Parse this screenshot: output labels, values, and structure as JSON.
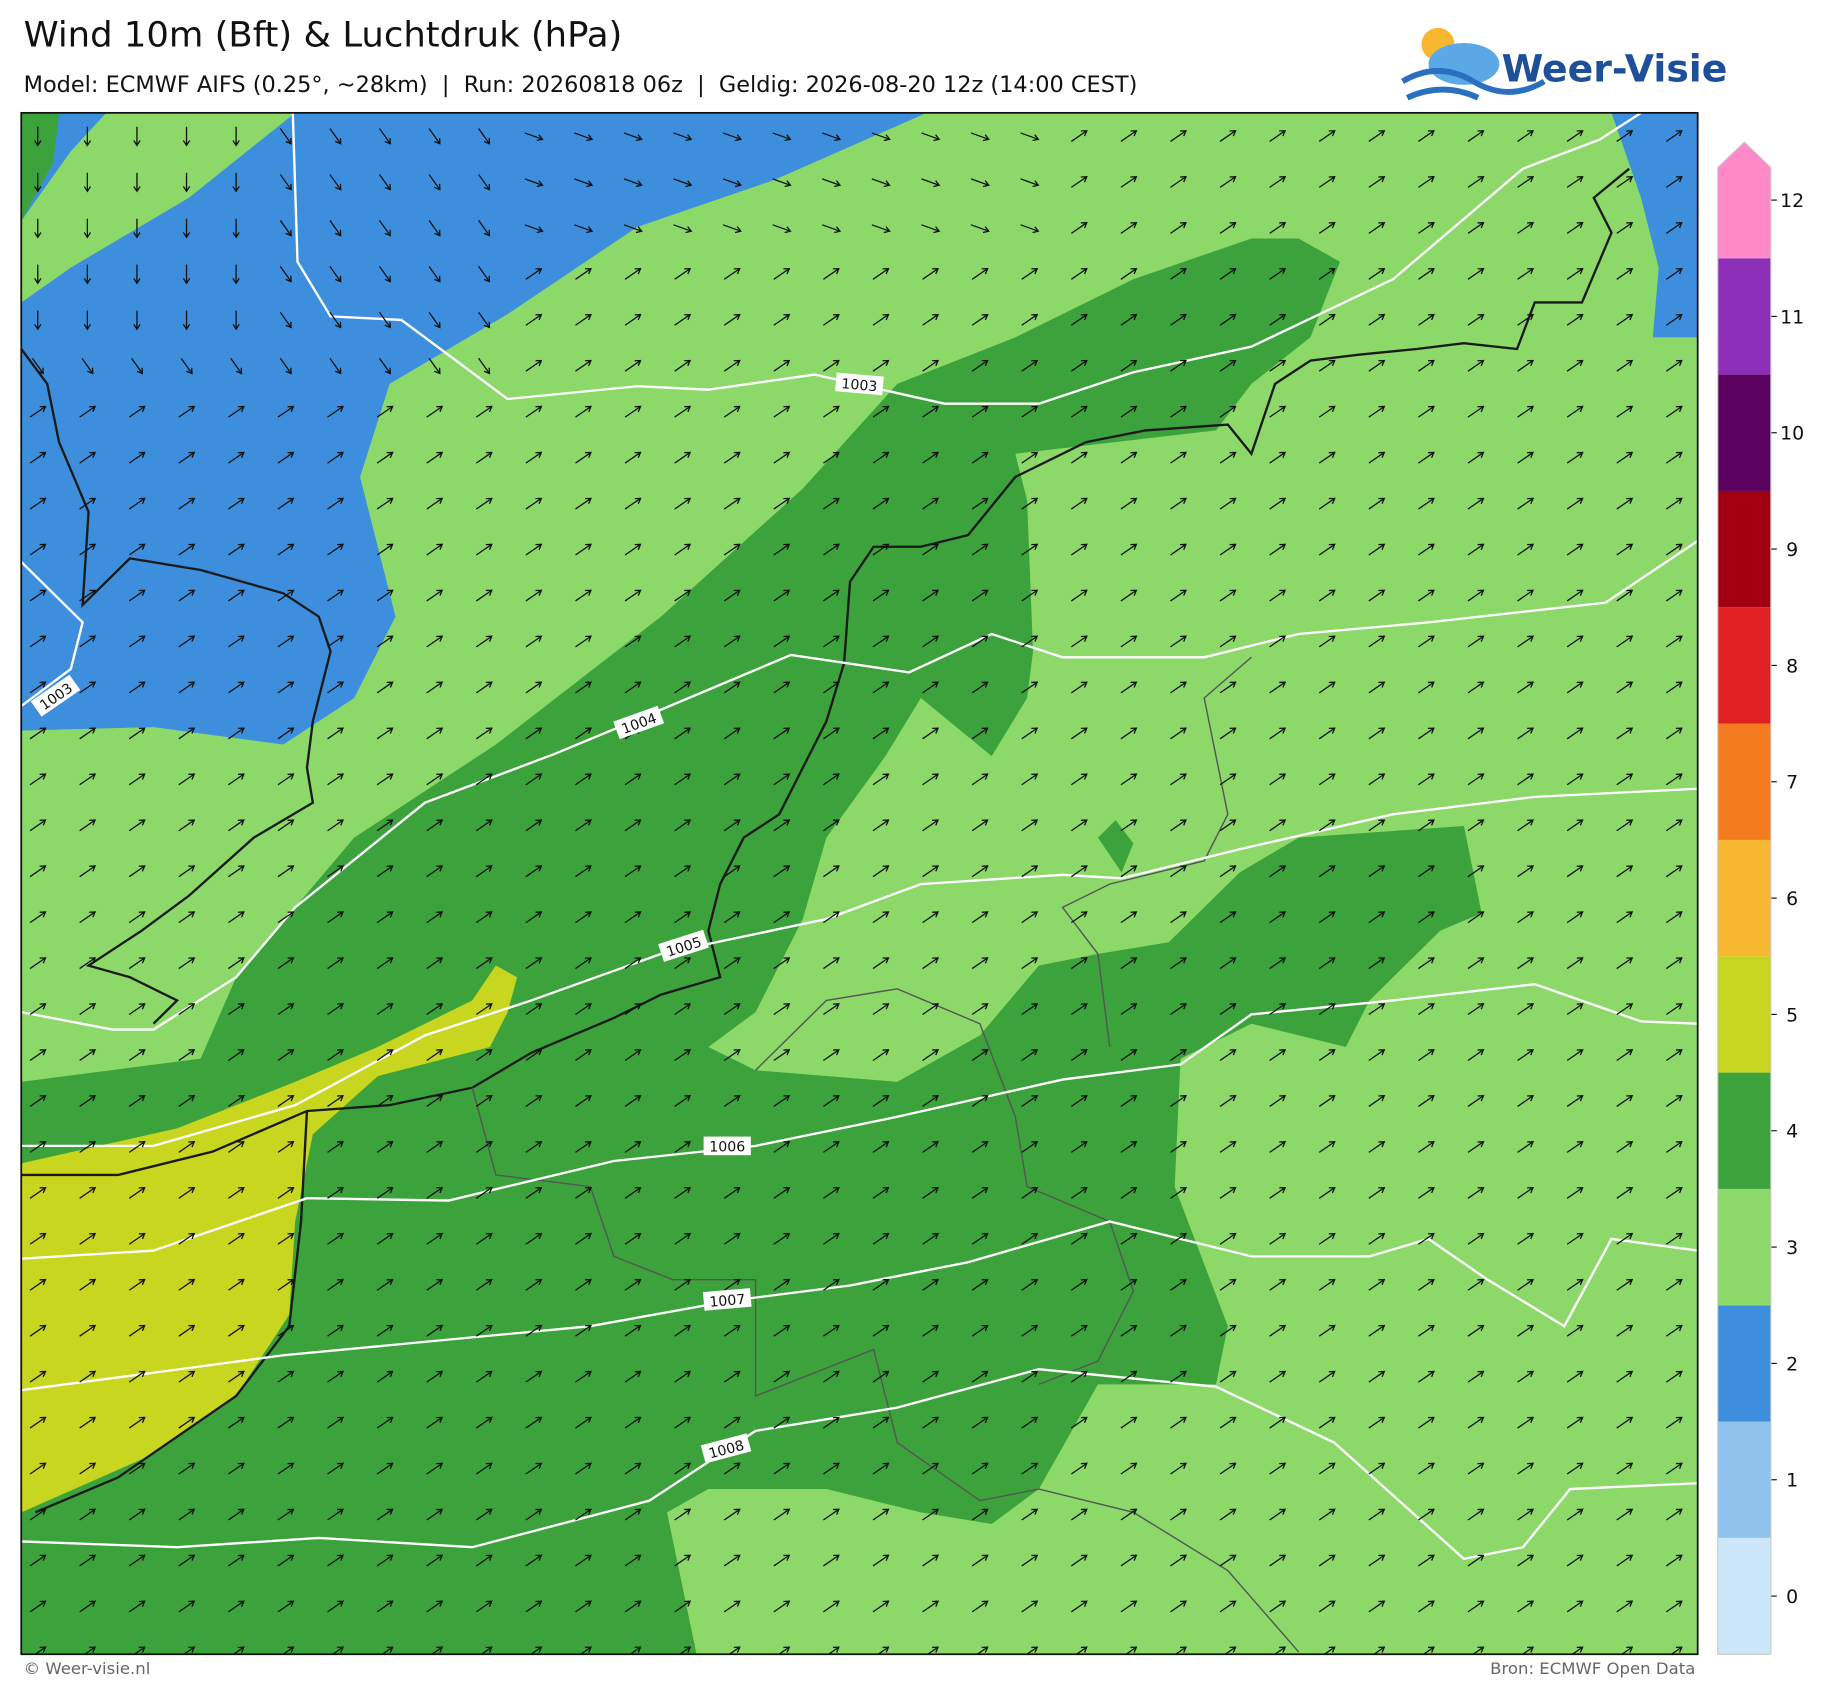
{
  "header": {
    "title": "Wind 10m (Bft) & Luchtdruk (hPa)",
    "subtitle": "Model: ECMWF AIFS (0.25°, ~28km)  |  Run: 20260818 06z  |  Geldig: 2026-08-20 12z (14:00 CEST)",
    "logo": "Weer-Visie"
  },
  "map": {
    "isobar_labels": [
      "1003",
      "1003",
      "1004",
      "1005",
      "1006",
      "1007",
      "1008"
    ]
  },
  "colorbar": {
    "items": [
      {
        "label": 0,
        "color": "#cce6fa"
      },
      {
        "label": 1,
        "color": "#90c4ee"
      },
      {
        "label": 2,
        "color": "#3d8fde"
      },
      {
        "label": 3,
        "color": "#8cd96a"
      },
      {
        "label": 4,
        "color": "#3ca33c"
      },
      {
        "label": 5,
        "color": "#c8d620"
      },
      {
        "label": 6,
        "color": "#f7b731"
      },
      {
        "label": 7,
        "color": "#f47b20"
      },
      {
        "label": 8,
        "color": "#e02020"
      },
      {
        "label": 9,
        "color": "#a00010"
      },
      {
        "label": 10,
        "color": "#5a005f"
      },
      {
        "label": 11,
        "color": "#8b2fb8"
      },
      {
        "label": 12,
        "color": "#ff88c8"
      }
    ]
  },
  "footer": {
    "credit": "© Weer-visie.nl",
    "source": "Bron: ECMWF Open Data"
  }
}
